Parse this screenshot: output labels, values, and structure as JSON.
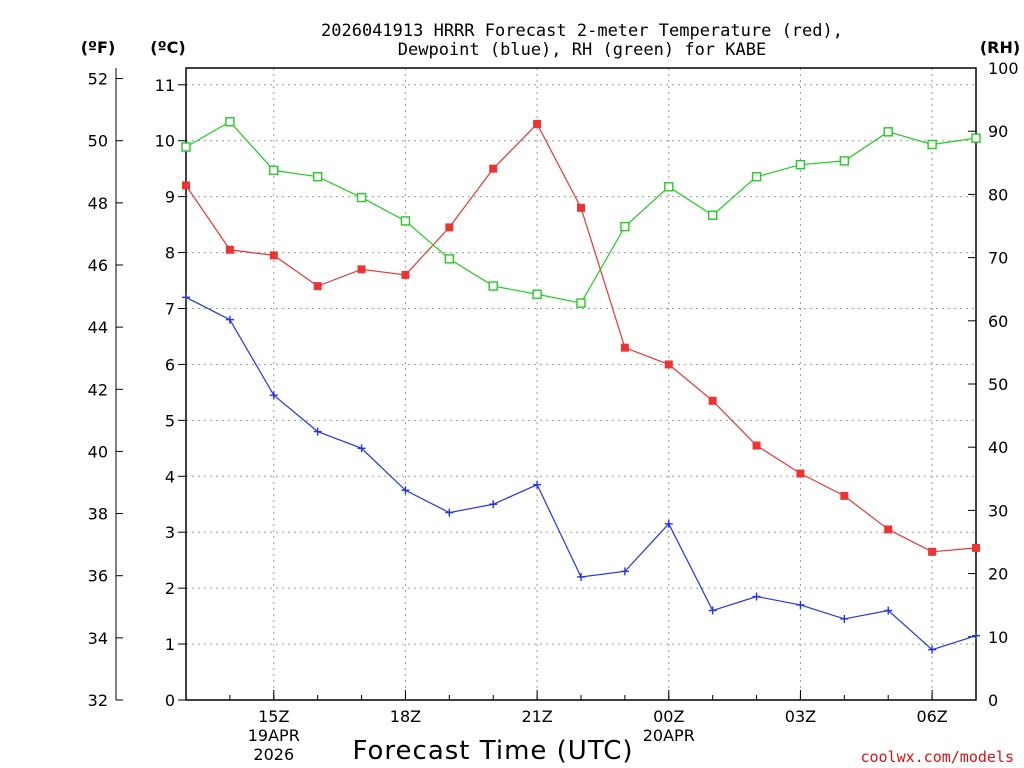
{
  "chart_data": {
    "type": "line",
    "title_lines": [
      "2026041913 HRRR Forecast 2-meter Temperature (red),",
      "Dewpoint (blue), RH (green) for KABE"
    ],
    "xlabel": "Forecast Time (UTC)",
    "credit": "coolwx.com/models",
    "unit_labels": {
      "fahrenheit": "(ºF)",
      "celsius": "(ºC)",
      "rh": "(RH)"
    },
    "x_hours": [
      13,
      14,
      15,
      16,
      17,
      18,
      19,
      20,
      21,
      22,
      23,
      24,
      25,
      26,
      27,
      28,
      29,
      30,
      31
    ],
    "xlim": [
      13,
      31
    ],
    "x_ticks": [
      {
        "hour": 15,
        "label": "15Z",
        "sub": [
          "19APR",
          "2026"
        ]
      },
      {
        "hour": 18,
        "label": "18Z",
        "sub": []
      },
      {
        "hour": 21,
        "label": "21Z",
        "sub": []
      },
      {
        "hour": 24,
        "label": "00Z",
        "sub": [
          "20APR"
        ]
      },
      {
        "hour": 27,
        "label": "03Z",
        "sub": []
      },
      {
        "hour": 30,
        "label": "06Z",
        "sub": []
      }
    ],
    "left_axis_celsius": {
      "range": [
        0,
        11.3
      ],
      "ticks": [
        0,
        1,
        2,
        3,
        4,
        5,
        6,
        7,
        8,
        9,
        10,
        11
      ]
    },
    "left_axis_fahrenheit": {
      "range": [
        32,
        52.34
      ],
      "ticks": [
        32,
        34,
        36,
        38,
        40,
        42,
        44,
        46,
        48,
        50,
        52
      ]
    },
    "right_axis_rh": {
      "range": [
        0,
        100
      ],
      "ticks": [
        0,
        10,
        20,
        30,
        40,
        50,
        60,
        70,
        80,
        90,
        100
      ]
    },
    "series": [
      {
        "name": "2-meter Temperature",
        "axis": "celsius",
        "color": "#ee3333",
        "marker": "filled-square",
        "values": [
          9.2,
          8.05,
          7.95,
          7.4,
          7.7,
          7.6,
          8.45,
          9.5,
          10.3,
          8.8,
          6.3,
          6.0,
          5.35,
          4.55,
          4.05,
          3.65,
          3.05,
          2.65,
          2.72
        ]
      },
      {
        "name": "Dewpoint",
        "axis": "celsius",
        "color": "#2233ee",
        "marker": "plus",
        "values": [
          7.2,
          6.8,
          5.45,
          4.8,
          4.5,
          3.75,
          3.35,
          3.5,
          3.85,
          2.2,
          2.3,
          3.15,
          1.6,
          1.85,
          1.7,
          1.45,
          1.6,
          0.9,
          1.15
        ]
      },
      {
        "name": "RH",
        "axis": "rh",
        "color": "#22cc22",
        "marker": "open-square",
        "values": [
          87.5,
          91.5,
          83.8,
          82.8,
          79.5,
          75.8,
          69.8,
          65.5,
          64.2,
          62.8,
          74.9,
          81.2,
          76.7,
          82.8,
          84.7,
          85.3,
          89.9,
          87.9,
          88.9
        ]
      }
    ]
  }
}
